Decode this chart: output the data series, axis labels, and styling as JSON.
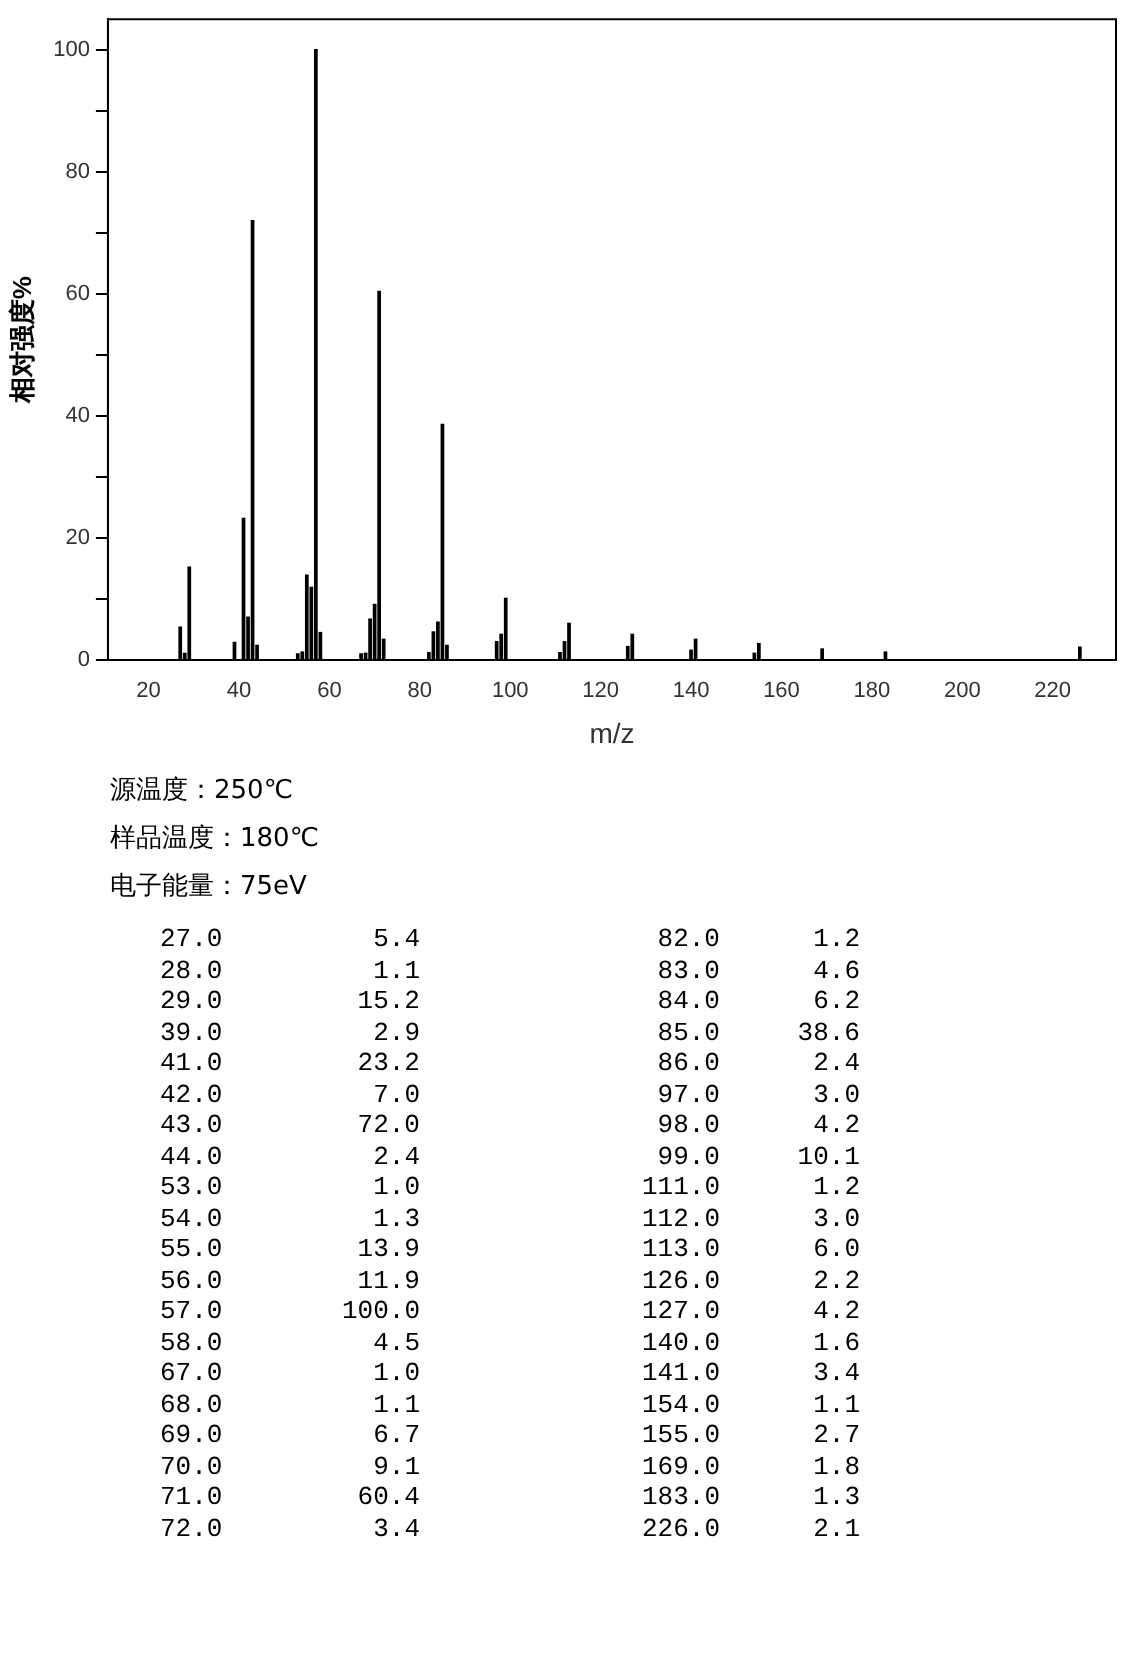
{
  "chart_data": {
    "type": "bar",
    "xlabel": "m/z",
    "ylabel": "相对强度%",
    "x": [
      27,
      28,
      29,
      39,
      41,
      42,
      43,
      44,
      53,
      54,
      55,
      56,
      57,
      58,
      67,
      68,
      69,
      70,
      71,
      72,
      82,
      83,
      84,
      85,
      86,
      97,
      98,
      99,
      111,
      112,
      113,
      126,
      127,
      140,
      141,
      154,
      155,
      169,
      183,
      226
    ],
    "values": [
      5.4,
      1.1,
      15.2,
      2.9,
      23.2,
      7.0,
      72.0,
      2.4,
      1.0,
      1.3,
      13.9,
      11.9,
      100.0,
      4.5,
      1.0,
      1.1,
      6.7,
      9.1,
      60.4,
      3.4,
      1.2,
      4.6,
      6.2,
      38.6,
      2.4,
      3.0,
      4.2,
      10.1,
      1.2,
      3.0,
      6.0,
      2.2,
      4.2,
      1.6,
      3.4,
      1.1,
      2.7,
      1.8,
      1.3,
      2.1
    ],
    "color": "#000000",
    "xlim": [
      11,
      234
    ],
    "xticks": [
      20,
      40,
      60,
      80,
      100,
      120,
      140,
      160,
      180,
      200,
      220
    ],
    "ylim": [
      0,
      105
    ],
    "yticks": [
      0,
      {
        "value": 10,
        "label": null
      },
      20,
      {
        "value": 30,
        "label": null
      },
      40,
      {
        "value": 50,
        "label": null
      },
      60,
      {
        "value": 70,
        "label": null
      },
      80,
      {
        "value": 90,
        "label": null
      },
      100
    ],
    "grid": false,
    "legend": false,
    "annotations": [
      "源温度：250℃",
      "样品温度：180℃",
      "电子能量：75eV",
      "27.0\t5.4\t82.0\t1.2",
      "28.0\t1.1\t83.0\t4.6",
      "29.0\t15.2\t84.0\t6.2",
      "39.0\t2.9\t85.0\t38.6",
      "41.0\t23.2\t86.0\t2.4",
      "42.0\t7.0\t97.0\t3.0",
      "43.0\t72.0\t98.0\t4.2",
      "44.0\t2.4\t99.0\t10.1",
      "53.0\t1.0\t111.0\t1.2",
      "54.0\t1.3\t112.0\t3.0",
      "55.0\t13.9\t113.0\t6.0",
      "56.0\t11.9\t126.0\t2.2",
      "57.0\t100.0\t127.0\t4.2",
      "58.0\t4.5\t140.0\t1.6",
      "67.0\t1.0\t141.0\t3.4",
      "68.0\t1.1\t154.0\t1.1",
      "69.0\t6.7\t155.0\t2.7",
      "70.0\t9.1\t169.0\t1.8",
      "71.0\t60.4\t183.0\t1.3",
      "72.0\t3.4\t226.0\t2.1"
    ]
  }
}
